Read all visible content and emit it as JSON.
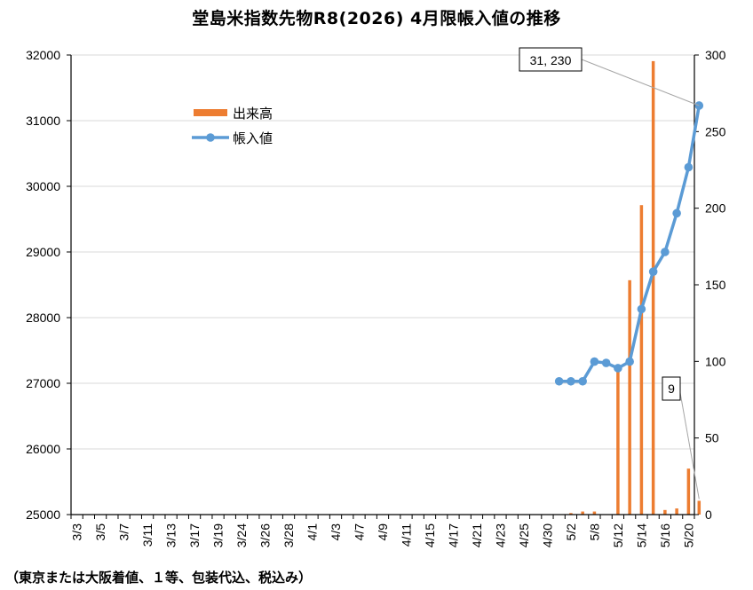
{
  "chart_data": {
    "type": "bar",
    "title": "堂島米指数先物R8(2026) 4月限帳入値の推移",
    "footnote": "（東京または大阪着値、１等、包装代込、税込み）",
    "x_tick_labels": [
      "3/3",
      "3/5",
      "3/7",
      "3/11",
      "3/13",
      "3/17",
      "3/19",
      "3/24",
      "3/26",
      "3/28",
      "4/1",
      "4/3",
      "4/7",
      "4/9",
      "4/11",
      "4/15",
      "4/17",
      "4/21",
      "4/23",
      "4/25",
      "4/30",
      "5/2",
      "5/8",
      "5/12",
      "5/14",
      "5/16",
      "5/20"
    ],
    "y_left": {
      "range": [
        25000,
        32000
      ],
      "ticks": [
        25000,
        26000,
        27000,
        28000,
        29000,
        30000,
        31000,
        32000
      ]
    },
    "y_right": {
      "range": [
        0,
        300
      ],
      "ticks": [
        0,
        50,
        100,
        150,
        200,
        250,
        300
      ]
    },
    "grid": true,
    "legend_position": "top-left",
    "x": [
      "4/30",
      "5/1",
      "5/2",
      "5/7",
      "5/8",
      "5/11",
      "5/12",
      "5/13",
      "5/14",
      "5/15",
      "5/18",
      "5/19",
      "5/20",
      "5/21"
    ],
    "series": [
      {
        "name": "出来高",
        "axis": "right",
        "color": "#ED7D31",
        "values": [
          0,
          0,
          1,
          2,
          2,
          0,
          96,
          153,
          202,
          296,
          3,
          4,
          30,
          9
        ]
      },
      {
        "name": "帳入値",
        "axis": "left",
        "color": "#5B9BD5",
        "values": [
          null,
          27030,
          27030,
          27030,
          27330,
          27310,
          27230,
          27330,
          28130,
          28700,
          29000,
          29590,
          30290,
          31230
        ]
      }
    ],
    "annotations": [
      {
        "text": "31, 230",
        "points_to": "帳入値 5/21"
      },
      {
        "text": "9",
        "points_to": "出来高 5/21"
      }
    ]
  }
}
